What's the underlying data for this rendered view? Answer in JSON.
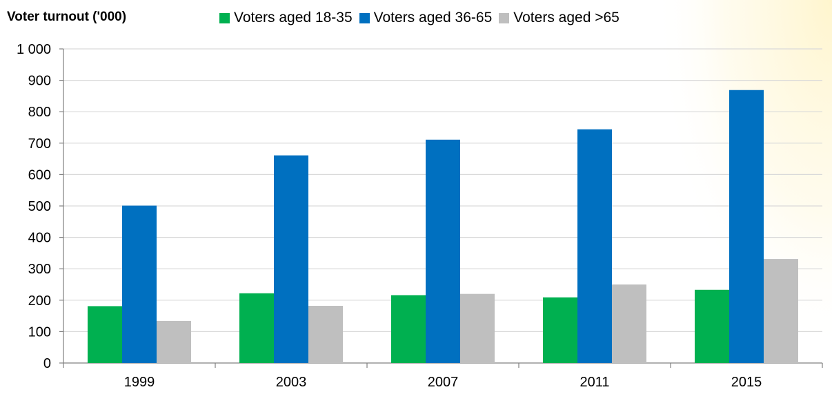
{
  "colors": {
    "series_0": "#00B050",
    "series_1": "#0070C0",
    "series_2": "#BFBFBF",
    "gridline": "#D9D9D9",
    "axis": "#808080"
  },
  "chart_data": {
    "type": "bar",
    "title": "",
    "ylabel": "Voter turnout ('000)",
    "xlabel": "",
    "categories": [
      "1999",
      "2003",
      "2007",
      "2011",
      "2015"
    ],
    "series": [
      {
        "name": "Voters aged 18-35",
        "values": [
          181,
          222,
          216,
          209,
          233
        ]
      },
      {
        "name": "Voters aged 36-65",
        "values": [
          501,
          661,
          711,
          744,
          869
        ]
      },
      {
        "name": "Voters aged >65",
        "values": [
          134,
          182,
          220,
          250,
          331
        ]
      }
    ],
    "ylim": [
      0,
      1000
    ],
    "yticks": [
      0,
      100,
      200,
      300,
      400,
      500,
      600,
      700,
      800,
      900,
      1000
    ],
    "ytick_labels": [
      "0",
      "100",
      "200",
      "300",
      "400",
      "500",
      "600",
      "700",
      "800",
      "900",
      "1 000"
    ],
    "grid": true,
    "legend_position": "top"
  }
}
